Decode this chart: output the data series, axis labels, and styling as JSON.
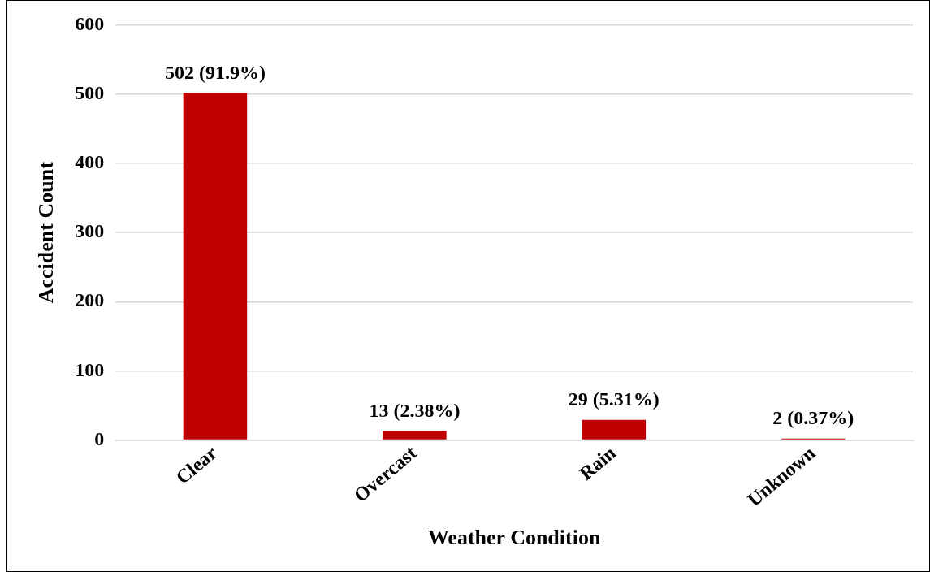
{
  "chart_data": {
    "type": "bar",
    "xlabel": "Weather Condition",
    "ylabel": "Accident Count",
    "categories": [
      "Clear",
      "Overcast",
      "Rain",
      "Unknown"
    ],
    "values": [
      502,
      13,
      29,
      2
    ],
    "value_labels": [
      "502 (91.9%)",
      "13 (2.38%)",
      "29 (5.31%)",
      "2 (0.37%)"
    ],
    "color": "#c00000",
    "ylim": [
      0,
      600
    ],
    "yticks": [
      0,
      100,
      200,
      300,
      400,
      500,
      600
    ],
    "grid": "y",
    "legend": false
  }
}
